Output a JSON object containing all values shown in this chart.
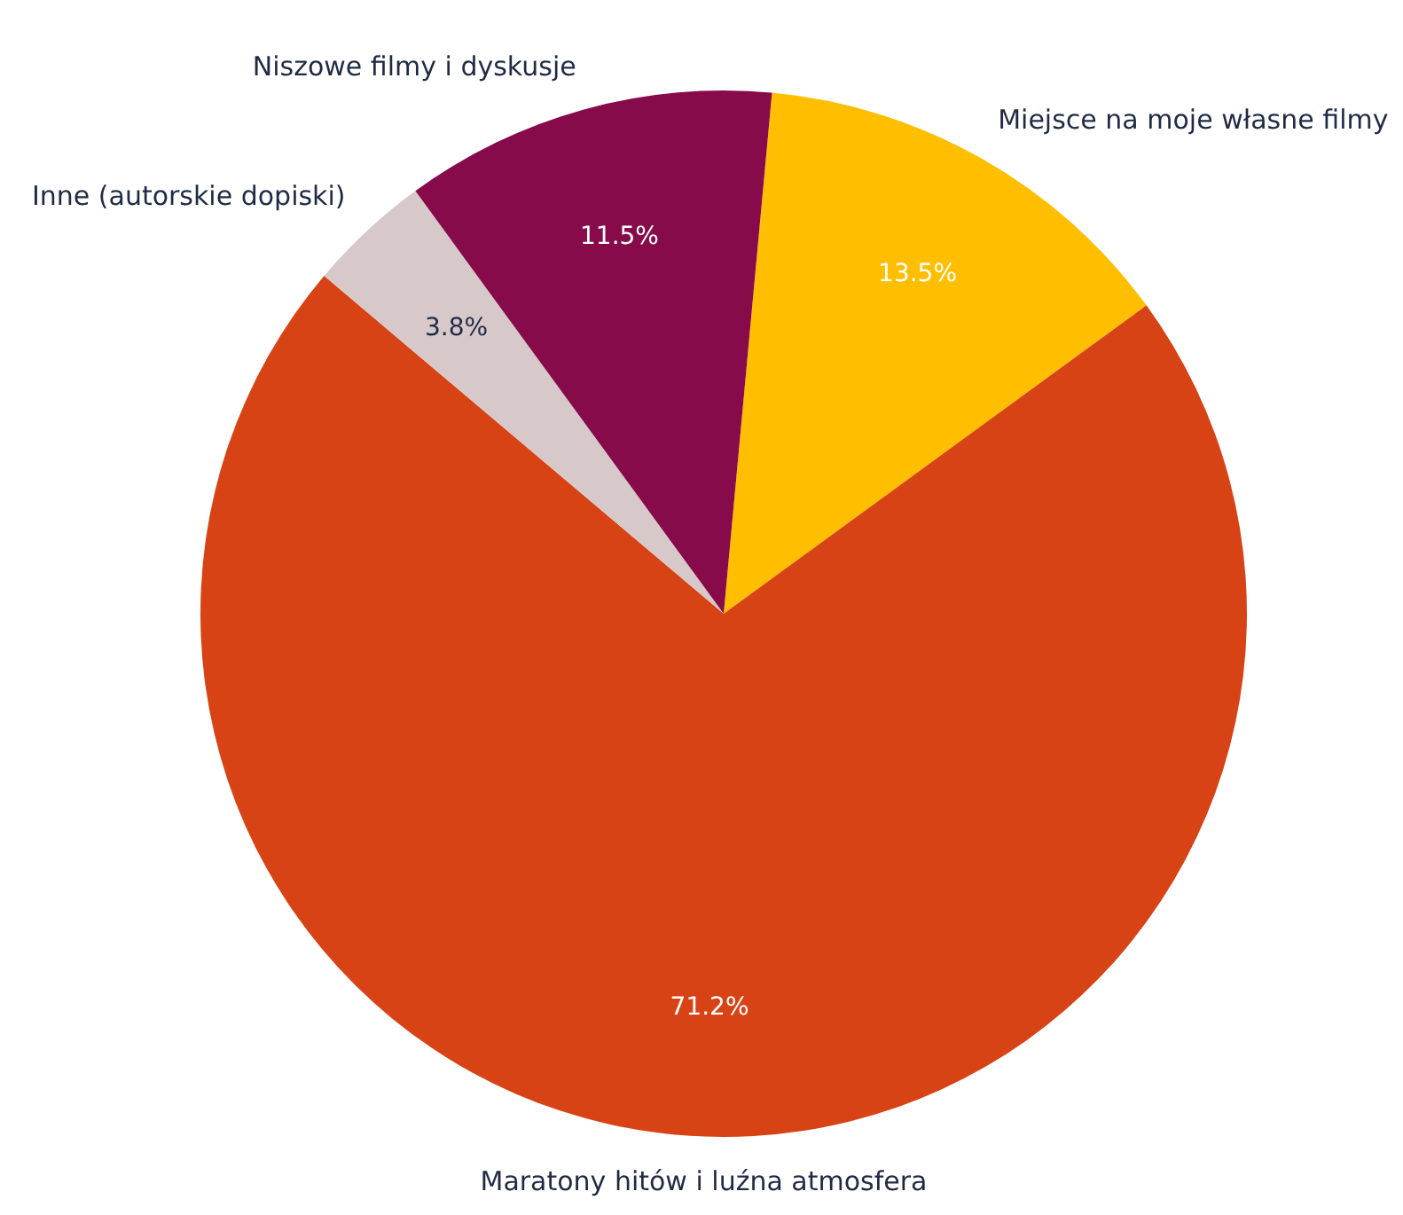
{
  "chart_data": {
    "type": "pie",
    "categories": [
      "Miejsce na moje własne filmy",
      "Maratony hitów i luźna atmosfera",
      "Inne (autorskie dopiski)",
      "Niszowe filmy i dyskusje"
    ],
    "values": [
      13.5,
      71.2,
      3.8,
      11.5
    ],
    "colors": [
      "#ffbe00",
      "#d84315",
      "#d7c9c9",
      "#870a4b"
    ],
    "value_labels": [
      "13.5%",
      "71.2%",
      "3.8%",
      "11.5%"
    ]
  }
}
